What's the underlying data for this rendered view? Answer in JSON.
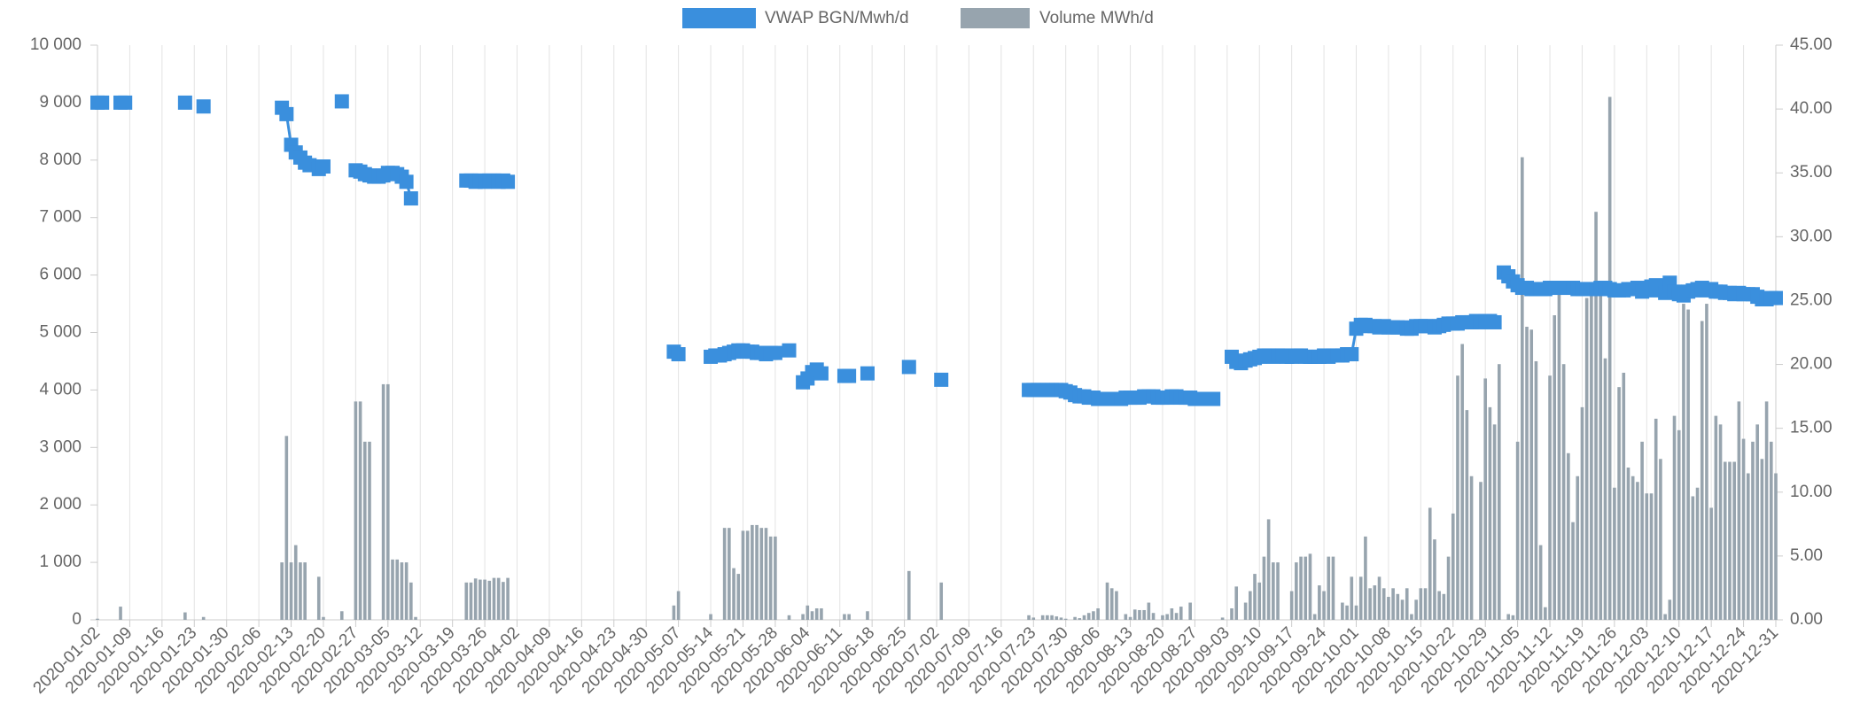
{
  "chart_data": {
    "type": "combo",
    "grid": "x",
    "categories": [
      "2020-01-02",
      null,
      null,
      null,
      null,
      null,
      null,
      "2020-01-09",
      null,
      null,
      null,
      null,
      null,
      null,
      "2020-01-16",
      null,
      null,
      null,
      null,
      null,
      null,
      "2020-01-23",
      null,
      null,
      null,
      null,
      null,
      null,
      "2020-01-30",
      null,
      null,
      null,
      null,
      null,
      null,
      "2020-02-06",
      null,
      null,
      null,
      null,
      null,
      null,
      "2020-02-13",
      null,
      null,
      null,
      null,
      null,
      null,
      "2020-02-20",
      null,
      null,
      null,
      null,
      null,
      null,
      "2020-02-27",
      null,
      null,
      null,
      null,
      null,
      null,
      "2020-03-05",
      null,
      null,
      null,
      null,
      null,
      null,
      "2020-03-12",
      null,
      null,
      null,
      null,
      null,
      null,
      "2020-03-19",
      null,
      null,
      null,
      null,
      null,
      null,
      "2020-03-26",
      null,
      null,
      null,
      null,
      null,
      null,
      "2020-04-02",
      null,
      null,
      null,
      null,
      null,
      null,
      "2020-04-09",
      null,
      null,
      null,
      null,
      null,
      null,
      "2020-04-16",
      null,
      null,
      null,
      null,
      null,
      null,
      "2020-04-23",
      null,
      null,
      null,
      null,
      null,
      null,
      "2020-04-30",
      null,
      null,
      null,
      null,
      null,
      null,
      "2020-05-07",
      null,
      null,
      null,
      null,
      null,
      null,
      "2020-05-14",
      null,
      null,
      null,
      null,
      null,
      null,
      "2020-05-21",
      null,
      null,
      null,
      null,
      null,
      null,
      "2020-05-28",
      null,
      null,
      null,
      null,
      null,
      null,
      "2020-06-04",
      null,
      null,
      null,
      null,
      null,
      null,
      "2020-06-11",
      null,
      null,
      null,
      null,
      null,
      null,
      "2020-06-18",
      null,
      null,
      null,
      null,
      null,
      null,
      "2020-06-25",
      null,
      null,
      null,
      null,
      null,
      null,
      "2020-07-02",
      null,
      null,
      null,
      null,
      null,
      null,
      "2020-07-09",
      null,
      null,
      null,
      null,
      null,
      null,
      "2020-07-16",
      null,
      null,
      null,
      null,
      null,
      null,
      "2020-07-23",
      null,
      null,
      null,
      null,
      null,
      null,
      "2020-07-30",
      null,
      null,
      null,
      null,
      null,
      null,
      "2020-08-06",
      null,
      null,
      null,
      null,
      null,
      null,
      "2020-08-13",
      null,
      null,
      null,
      null,
      null,
      null,
      "2020-08-20",
      null,
      null,
      null,
      null,
      null,
      null,
      "2020-08-27",
      null,
      null,
      null,
      null,
      null,
      null,
      "2020-09-03",
      null,
      null,
      null,
      null,
      null,
      null,
      "2020-09-10",
      null,
      null,
      null,
      null,
      null,
      null,
      "2020-09-17",
      null,
      null,
      null,
      null,
      null,
      null,
      "2020-09-24",
      null,
      null,
      null,
      null,
      null,
      null,
      "2020-10-01",
      null,
      null,
      null,
      null,
      null,
      null,
      "2020-10-08",
      null,
      null,
      null,
      null,
      null,
      null,
      "2020-10-15",
      null,
      null,
      null,
      null,
      null,
      null,
      "2020-10-22",
      null,
      null,
      null,
      null,
      null,
      null,
      "2020-10-29",
      null,
      null,
      null,
      null,
      null,
      null,
      "2020-11-05",
      null,
      null,
      null,
      null,
      null,
      null,
      "2020-11-12",
      null,
      null,
      null,
      null,
      null,
      null,
      "2020-11-19",
      null,
      null,
      null,
      null,
      null,
      null,
      "2020-11-26",
      null,
      null,
      null,
      null,
      null,
      null,
      "2020-12-03",
      null,
      null,
      null,
      null,
      null,
      null,
      "2020-12-10",
      null,
      null,
      null,
      null,
      null,
      null,
      "2020-12-17",
      null,
      null,
      null,
      null,
      null,
      null,
      "2020-12-24",
      null,
      null,
      null,
      null,
      null,
      null,
      "2020-12-31"
    ],
    "ylim": [
      0,
      10000
    ],
    "yticks": [
      0,
      {
        "value": 1000,
        "label": "1 000"
      },
      {
        "value": 2000,
        "label": "2 000"
      },
      {
        "value": 3000,
        "label": "3 000"
      },
      {
        "value": 4000,
        "label": "4 000"
      },
      {
        "value": 5000,
        "label": "5 000"
      },
      {
        "value": 6000,
        "label": "6 000"
      },
      {
        "value": 7000,
        "label": "7 000"
      },
      {
        "value": 8000,
        "label": "8 000"
      },
      {
        "value": 9000,
        "label": "9 000"
      },
      {
        "value": 10000,
        "label": "10 000"
      }
    ],
    "y2lim": [
      0,
      45
    ],
    "y2ticks": [
      {
        "value": 0,
        "label": "0.00"
      },
      {
        "value": 5,
        "label": "5.00"
      },
      {
        "value": 10,
        "label": "10.00"
      },
      {
        "value": 15,
        "label": "15.00"
      },
      {
        "value": 20,
        "label": "20.00"
      },
      {
        "value": 25,
        "label": "25.00"
      },
      {
        "value": 30,
        "label": "30.00"
      },
      {
        "value": 35,
        "label": "35.00"
      },
      {
        "value": 40,
        "label": "40.00"
      },
      {
        "value": 45,
        "label": "45.00"
      }
    ],
    "series": [
      {
        "name": "VWAP BGN/Mwh/d",
        "type": "line",
        "axis": "y2",
        "color": "#3a8fdd",
        "values": [
          40.5,
          40.5,
          null,
          null,
          null,
          40.5,
          40.5,
          null,
          null,
          null,
          null,
          null,
          null,
          null,
          null,
          null,
          null,
          null,
          null,
          40.5,
          null,
          null,
          null,
          40.2,
          null,
          null,
          null,
          null,
          null,
          null,
          null,
          null,
          null,
          null,
          null,
          null,
          null,
          null,
          null,
          null,
          40.1,
          39.6,
          37.2,
          36.6,
          36.2,
          35.8,
          35.6,
          null,
          35.3,
          35.5,
          null,
          null,
          null,
          40.6,
          null,
          null,
          35.2,
          35.1,
          34.9,
          34.8,
          34.7,
          34.7,
          34.8,
          35.0,
          35.0,
          34.9,
          34.7,
          34.3,
          33.0,
          null,
          null,
          null,
          null,
          null,
          null,
          null,
          null,
          null,
          null,
          null,
          34.4,
          34.4,
          34.3,
          34.4,
          34.3,
          34.4,
          34.4,
          34.3,
          34.4,
          34.3,
          null,
          null,
          null,
          null,
          null,
          null,
          null,
          null,
          null,
          null,
          null,
          null,
          null,
          null,
          null,
          null,
          null,
          null,
          null,
          null,
          null,
          null,
          null,
          null,
          null,
          null,
          null,
          null,
          null,
          null,
          null,
          null,
          null,
          null,
          null,
          21.0,
          20.8,
          null,
          null,
          null,
          null,
          null,
          null,
          20.6,
          20.7,
          20.7,
          20.8,
          20.9,
          21.0,
          21.1,
          21.1,
          21.0,
          21.0,
          20.9,
          20.9,
          20.8,
          20.9,
          20.9,
          null,
          null,
          21.1,
          null,
          null,
          18.6,
          18.9,
          19.4,
          19.6,
          19.3,
          null,
          null,
          null,
          null,
          19.1,
          19.1,
          null,
          null,
          null,
          19.3,
          null,
          null,
          null,
          null,
          null,
          null,
          null,
          null,
          19.8,
          null,
          null,
          null,
          null,
          null,
          null,
          18.8,
          null,
          null,
          null,
          null,
          null,
          null,
          null,
          null,
          null,
          null,
          null,
          null,
          null,
          null,
          null,
          null,
          null,
          null,
          18.0,
          18.0,
          18.0,
          18.0,
          18.0,
          18.0,
          18.0,
          18.0,
          17.9,
          17.8,
          17.6,
          17.5,
          17.5,
          17.4,
          17.4,
          17.3,
          17.3,
          17.3,
          17.3,
          17.3,
          17.3,
          17.4,
          17.4,
          17.4,
          17.4,
          17.5,
          17.5,
          17.5,
          17.4,
          17.4,
          17.4,
          17.5,
          17.5,
          17.4,
          17.4,
          17.4,
          17.3,
          17.3,
          17.3,
          17.3,
          17.3,
          null,
          null,
          null,
          20.6,
          20.2,
          20.1,
          20.3,
          20.4,
          20.5,
          20.6,
          20.7,
          20.7,
          20.6,
          20.7,
          20.7,
          20.6,
          20.6,
          20.7,
          20.7,
          20.6,
          20.6,
          20.6,
          20.6,
          20.7,
          20.6,
          20.7,
          20.7,
          20.7,
          20.8,
          20.8,
          22.8,
          23.1,
          23.1,
          23.0,
          23.0,
          22.9,
          23.0,
          22.9,
          22.9,
          22.9,
          22.9,
          22.8,
          22.8,
          23.0,
          23.0,
          23.0,
          23.0,
          22.9,
          23.0,
          23.1,
          23.2,
          23.2,
          23.2,
          23.3,
          23.3,
          23.3,
          23.4,
          23.3,
          23.4,
          23.4,
          23.3,
          null,
          27.2,
          26.9,
          26.5,
          26.2,
          26.0,
          26.0,
          25.9,
          25.9,
          25.9,
          25.9,
          26.0,
          26.0,
          26.0,
          26.0,
          26.0,
          26.0,
          25.9,
          25.9,
          25.9,
          25.9,
          25.9,
          26.0,
          26.0,
          25.9,
          25.8,
          25.8,
          25.8,
          25.9,
          25.9,
          26.0,
          25.7,
          25.8,
          26.1,
          26.2,
          25.8,
          25.6,
          26.4,
          25.7,
          25.5,
          25.4,
          25.7,
          25.8,
          25.9,
          26.0,
          25.8,
          25.9,
          25.7,
          25.7,
          25.6,
          25.6,
          25.5,
          25.6,
          25.5,
          25.5,
          25.5,
          25.3,
          25.1,
          25.1,
          25.2,
          25.2
        ]
      },
      {
        "name": "Volume MWh/d",
        "type": "bar",
        "axis": "y",
        "color": "#97a4ae",
        "values": [
          20,
          null,
          null,
          null,
          null,
          230,
          null,
          null,
          null,
          null,
          null,
          null,
          null,
          null,
          null,
          null,
          null,
          null,
          null,
          130,
          null,
          null,
          null,
          50,
          null,
          null,
          null,
          null,
          null,
          null,
          null,
          null,
          null,
          null,
          null,
          null,
          null,
          null,
          null,
          null,
          1000,
          3200,
          1000,
          1300,
          1000,
          1000,
          null,
          null,
          750,
          50,
          null,
          null,
          null,
          150,
          null,
          null,
          3800,
          3800,
          3100,
          3100,
          null,
          null,
          4100,
          4100,
          1050,
          1050,
          1000,
          1000,
          650,
          50,
          null,
          null,
          null,
          null,
          null,
          null,
          null,
          null,
          null,
          null,
          650,
          650,
          720,
          700,
          700,
          680,
          730,
          730,
          660,
          730,
          null,
          null,
          null,
          null,
          null,
          null,
          null,
          null,
          null,
          null,
          null,
          null,
          null,
          null,
          null,
          null,
          null,
          null,
          null,
          null,
          null,
          null,
          null,
          null,
          null,
          null,
          null,
          null,
          null,
          null,
          null,
          null,
          null,
          null,
          null,
          250,
          500,
          null,
          null,
          null,
          null,
          null,
          null,
          100,
          null,
          null,
          1600,
          1600,
          900,
          800,
          1550,
          1550,
          1650,
          1650,
          1600,
          1600,
          1450,
          1450,
          null,
          null,
          80,
          null,
          null,
          100,
          250,
          150,
          200,
          200,
          null,
          null,
          null,
          null,
          100,
          100,
          null,
          null,
          null,
          150,
          null,
          null,
          null,
          null,
          null,
          null,
          null,
          null,
          850,
          null,
          null,
          null,
          null,
          null,
          null,
          650,
          null,
          null,
          null,
          null,
          null,
          null,
          null,
          null,
          null,
          null,
          null,
          null,
          null,
          null,
          null,
          null,
          null,
          null,
          80,
          40,
          null,
          80,
          80,
          80,
          60,
          40,
          20,
          null,
          50,
          30,
          80,
          120,
          150,
          200,
          null,
          650,
          550,
          500,
          null,
          100,
          50,
          180,
          170,
          170,
          300,
          120,
          null,
          80,
          100,
          200,
          120,
          230,
          null,
          300,
          null,
          null,
          null,
          null,
          null,
          null,
          40,
          null,
          200,
          580,
          null,
          300,
          500,
          800,
          650,
          1100,
          1750,
          1000,
          1000,
          null,
          null,
          500,
          1000,
          1100,
          1100,
          1150,
          100,
          600,
          500,
          1100,
          1100,
          null,
          300,
          250,
          750,
          250,
          750,
          1450,
          550,
          600,
          750,
          550,
          400,
          550,
          450,
          350,
          550,
          100,
          350,
          550,
          550,
          1950,
          1400,
          500,
          450,
          1100,
          1850,
          4250,
          4800,
          3650,
          2500,
          null,
          2400,
          4200,
          3700,
          3400,
          4450,
          null,
          100,
          80,
          3100,
          8050,
          5100,
          5050,
          4500,
          1300,
          220,
          4250,
          5300,
          5900,
          4450,
          2900,
          1700,
          2500,
          3700,
          5600,
          5700,
          7100,
          5800,
          4550,
          9100,
          2300,
          4050,
          4300,
          2650,
          2500,
          2400,
          3100,
          2200,
          2200,
          3500,
          2800,
          100,
          350,
          3550,
          3300,
          5500,
          5400,
          2150,
          2300,
          5200,
          5500,
          1950,
          3550,
          3400,
          2750,
          2750,
          2750,
          3800,
          3150,
          2550,
          3100,
          3400,
          2800,
          3800,
          3100,
          2550
        ]
      }
    ]
  }
}
